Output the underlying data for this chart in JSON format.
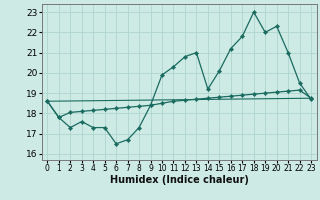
{
  "title": "",
  "xlabel": "Humidex (Indice chaleur)",
  "xlim": [
    -0.5,
    23.5
  ],
  "ylim": [
    15.7,
    23.4
  ],
  "yticks": [
    16,
    17,
    18,
    19,
    20,
    21,
    22,
    23
  ],
  "xticks": [
    0,
    1,
    2,
    3,
    4,
    5,
    6,
    7,
    8,
    9,
    10,
    11,
    12,
    13,
    14,
    15,
    16,
    17,
    18,
    19,
    20,
    21,
    22,
    23
  ],
  "background_color": "#cdeae5",
  "grid_color": "#aed4ce",
  "line_color": "#1a6b60",
  "series1_x": [
    0,
    1,
    2,
    3,
    4,
    5,
    6,
    7,
    8,
    9,
    10,
    11,
    12,
    13,
    14,
    15,
    16,
    17,
    18,
    19,
    20,
    21,
    22,
    23
  ],
  "series1_y": [
    18.6,
    17.8,
    17.3,
    17.6,
    17.3,
    17.3,
    16.5,
    16.7,
    17.3,
    18.4,
    19.9,
    20.3,
    20.8,
    21.0,
    19.2,
    20.1,
    21.2,
    21.8,
    23.0,
    22.0,
    22.3,
    21.0,
    19.5,
    18.7
  ],
  "series2_x": [
    0,
    1,
    2,
    3,
    4,
    5,
    6,
    7,
    8,
    9,
    10,
    11,
    12,
    13,
    14,
    15,
    16,
    17,
    18,
    19,
    20,
    21,
    22,
    23
  ],
  "series2_y": [
    18.6,
    17.8,
    18.05,
    18.1,
    18.15,
    18.2,
    18.25,
    18.3,
    18.35,
    18.4,
    18.5,
    18.6,
    18.65,
    18.7,
    18.75,
    18.8,
    18.85,
    18.9,
    18.95,
    19.0,
    19.05,
    19.1,
    19.15,
    18.75
  ],
  "series3_x": [
    0,
    23
  ],
  "series3_y": [
    18.6,
    18.75
  ],
  "marker_x2": [
    0,
    2,
    3,
    4,
    5,
    6,
    7,
    8,
    9,
    10,
    11,
    12,
    13,
    14,
    15,
    16,
    17,
    18,
    19,
    20,
    21,
    22,
    23
  ]
}
